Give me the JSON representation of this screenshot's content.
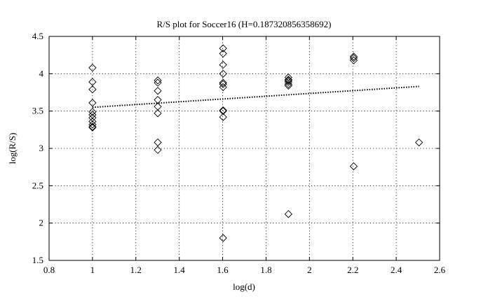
{
  "chart_data": {
    "type": "scatter",
    "title": "R/S plot for Soccer16 (H=0.187320856358692)",
    "xlabel": "log(d)",
    "ylabel": "log(R/S)",
    "xlim": [
      0.8,
      2.6
    ],
    "ylim": [
      1.5,
      4.5
    ],
    "xticks": [
      0.8,
      1.0,
      1.2,
      1.4,
      1.6,
      1.8,
      2.0,
      2.2,
      2.4,
      2.6
    ],
    "xtick_labels": [
      "0.8",
      "1",
      "1.2",
      "1.4",
      "1.6",
      "1.8",
      "2",
      "2.2",
      "2.4",
      "2.6"
    ],
    "yticks": [
      1.5,
      2.0,
      2.5,
      3.0,
      3.5,
      4.0,
      4.5
    ],
    "ytick_labels": [
      "1.5",
      "2",
      "2.5",
      "3",
      "3.5",
      "4",
      "4.5"
    ],
    "grid": true,
    "legend": "none",
    "marker": "diamond",
    "series": [
      {
        "x": [
          1.0,
          1.0,
          1.0,
          1.0,
          1.0,
          1.0,
          1.0,
          1.0,
          1.0,
          1.0,
          1.0,
          1.301,
          1.301,
          1.301,
          1.301,
          1.301,
          1.301,
          1.301,
          1.301,
          1.602,
          1.602,
          1.602,
          1.602,
          1.602,
          1.602,
          1.602,
          1.602,
          1.602,
          1.602,
          1.602,
          1.903,
          1.903,
          1.903,
          1.903,
          1.903,
          1.903,
          1.903,
          2.204,
          2.204,
          2.204,
          2.204,
          2.505
        ],
        "y": [
          4.08,
          3.89,
          3.79,
          3.61,
          3.49,
          3.45,
          3.41,
          3.36,
          3.32,
          3.29,
          3.28,
          3.91,
          3.88,
          3.77,
          3.65,
          3.56,
          3.47,
          3.08,
          2.98,
          4.34,
          4.27,
          4.12,
          4.0,
          3.88,
          3.82,
          3.51,
          3.5,
          3.42,
          1.8,
          3.86,
          3.95,
          3.92,
          3.91,
          3.89,
          3.86,
          3.84,
          2.12,
          4.23,
          4.21,
          4.18,
          2.76,
          3.08
        ]
      }
    ],
    "fit_line": {
      "style": "dotted",
      "x": [
        1.0,
        2.505
      ],
      "y": [
        3.55,
        3.83
      ]
    }
  }
}
